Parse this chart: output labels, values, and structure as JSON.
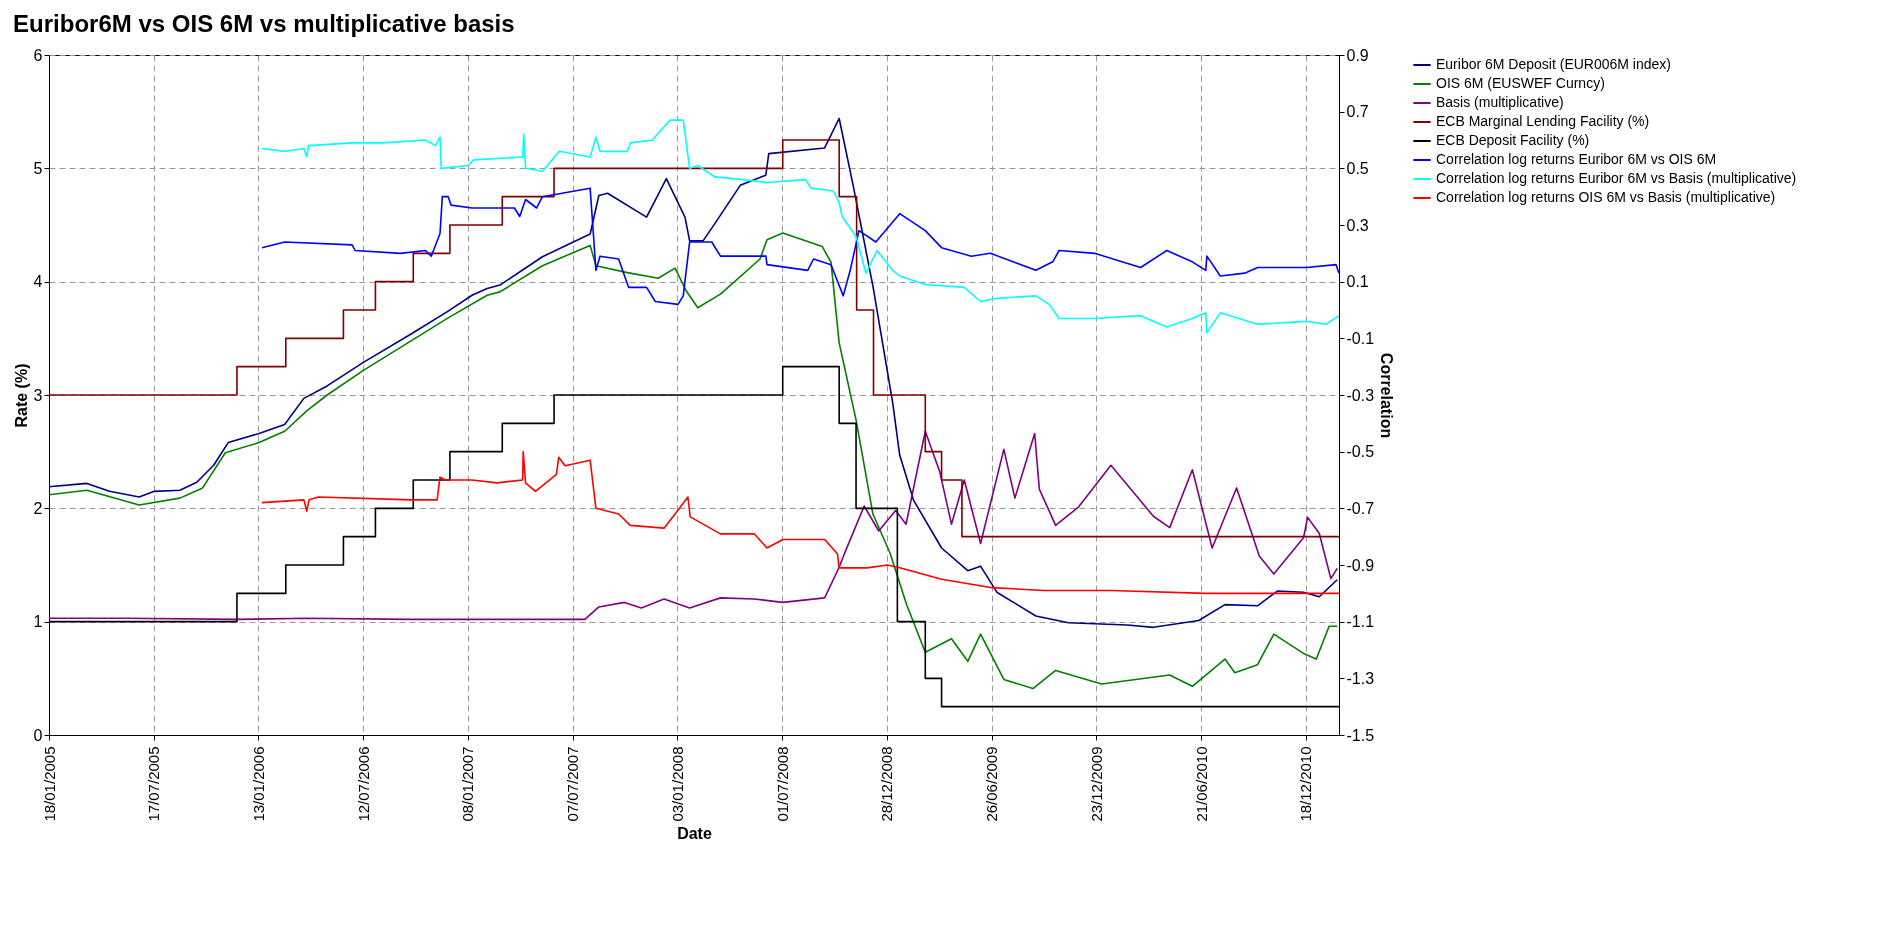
{
  "chart_data": {
    "type": "line",
    "title": "Euribor6M vs OIS 6M vs multiplicative basis",
    "xlabel": "Date",
    "ylabel": "Rate (%)",
    "y2label": "Correlation",
    "xlim": [
      "2005-01-18",
      "2011-02-13"
    ],
    "xticks": [
      {
        "value": "2005-01-18",
        "label": "18/01/2005"
      },
      {
        "value": "2005-07-17",
        "label": "17/07/2005"
      },
      {
        "value": "2006-01-13",
        "label": "13/01/2006"
      },
      {
        "value": "2006-07-12",
        "label": "12/07/2006"
      },
      {
        "value": "2007-01-08",
        "label": "08/01/2007"
      },
      {
        "value": "2007-07-07",
        "label": "07/07/2007"
      },
      {
        "value": "2008-01-03",
        "label": "03/01/2008"
      },
      {
        "value": "2008-07-01",
        "label": "01/07/2008"
      },
      {
        "value": "2008-12-28",
        "label": "28/12/2008"
      },
      {
        "value": "2009-06-26",
        "label": "26/06/2009"
      },
      {
        "value": "2009-12-23",
        "label": "23/12/2009"
      },
      {
        "value": "2010-06-21",
        "label": "21/06/2010"
      },
      {
        "value": "2010-12-18",
        "label": "18/12/2010"
      }
    ],
    "ylim": [
      0,
      6
    ],
    "yticks": [
      0,
      1,
      2,
      3,
      4,
      5,
      6
    ],
    "y2lim": [
      -1.5,
      0.9
    ],
    "y2ticks": [
      -1.5,
      -1.3,
      -1.1,
      -0.9,
      -0.7,
      -0.5,
      -0.3,
      -0.1,
      0.1,
      0.3,
      0.5,
      0.7,
      0.9
    ],
    "grid": true,
    "legend": "right",
    "series": [
      {
        "name": "Euribor 6M Deposit (EUR006M index)",
        "color": "#000080",
        "x": [
          "2005-01-18",
          "2005-03-24",
          "2005-05-02",
          "2005-06-22",
          "2005-07-18",
          "2005-08-31",
          "2005-09-29",
          "2005-10-28",
          "2005-11-22",
          "2006-01-14",
          "2006-02-27",
          "2006-04-01",
          "2006-05-11",
          "2006-07-13",
          "2006-10-03",
          "2006-12-05",
          "2007-01-15",
          "2007-02-10",
          "2007-03-04",
          "2007-05-16",
          "2007-08-06",
          "2007-08-21",
          "2007-09-05",
          "2007-11-11",
          "2007-12-15",
          "2008-01-16",
          "2008-01-24",
          "2008-02-16",
          "2008-03-07",
          "2008-04-20",
          "2008-06-03",
          "2008-06-08",
          "2008-09-12",
          "2008-10-07",
          "2008-10-31",
          "2008-12-04",
          "2009-01-07",
          "2009-01-19",
          "2009-02-12",
          "2009-04-01",
          "2009-05-16",
          "2009-06-07",
          "2009-07-05",
          "2009-09-10",
          "2009-11-05",
          "2010-02-14",
          "2010-03-31",
          "2010-06-17",
          "2010-08-01",
          "2010-09-26",
          "2010-10-30",
          "2010-12-14",
          "2011-01-10",
          "2011-02-10"
        ],
        "values": [
          2.19,
          2.22,
          2.15,
          2.1,
          2.15,
          2.16,
          2.23,
          2.38,
          2.58,
          2.66,
          2.74,
          2.97,
          3.08,
          3.29,
          3.54,
          3.74,
          3.88,
          3.94,
          3.97,
          4.22,
          4.42,
          4.76,
          4.78,
          4.57,
          4.91,
          4.57,
          4.36,
          4.36,
          4.51,
          4.85,
          4.94,
          5.13,
          5.18,
          5.44,
          4.85,
          3.96,
          2.93,
          2.47,
          2.07,
          1.65,
          1.45,
          1.49,
          1.26,
          1.05,
          0.99,
          0.97,
          0.95,
          1.01,
          1.15,
          1.14,
          1.27,
          1.26,
          1.22,
          1.37
        ]
      },
      {
        "name": "OIS 6M (EUSWEF Curncy)",
        "color": "#008000",
        "x": [
          "2005-01-18",
          "2005-03-24",
          "2005-06-22",
          "2005-08-31",
          "2005-10-09",
          "2005-11-17",
          "2006-01-14",
          "2006-02-27",
          "2006-04-06",
          "2006-05-11",
          "2006-07-13",
          "2006-10-03",
          "2006-12-05",
          "2007-02-10",
          "2007-03-04",
          "2007-05-16",
          "2007-08-06",
          "2007-08-16",
          "2007-10-09",
          "2007-12-01",
          "2007-12-30",
          "2008-01-18",
          "2008-02-07",
          "2008-03-17",
          "2008-05-24",
          "2008-06-05",
          "2008-07-02",
          "2008-09-08",
          "2008-09-23",
          "2008-10-07",
          "2008-11-05",
          "2008-12-04",
          "2009-01-02",
          "2009-01-31",
          "2009-03-04",
          "2009-04-18",
          "2009-05-16",
          "2009-06-07",
          "2009-07-17",
          "2009-09-05",
          "2009-10-14",
          "2010-01-01",
          "2010-04-28",
          "2010-06-06",
          "2010-08-01",
          "2010-08-18",
          "2010-09-26",
          "2010-10-24",
          "2010-12-14",
          "2011-01-05",
          "2011-01-27",
          "2011-02-10"
        ],
        "values": [
          2.12,
          2.16,
          2.03,
          2.09,
          2.18,
          2.49,
          2.58,
          2.68,
          2.86,
          3.0,
          3.22,
          3.48,
          3.68,
          3.88,
          3.91,
          4.14,
          4.32,
          4.14,
          4.08,
          4.03,
          4.12,
          3.92,
          3.77,
          3.89,
          4.2,
          4.37,
          4.43,
          4.31,
          4.17,
          3.46,
          2.78,
          1.95,
          1.61,
          1.15,
          0.73,
          0.85,
          0.65,
          0.89,
          0.49,
          0.41,
          0.57,
          0.45,
          0.53,
          0.43,
          0.67,
          0.55,
          0.62,
          0.89,
          0.72,
          0.67,
          0.96,
          0.96
        ]
      },
      {
        "name": "Basis (multiplicative)",
        "color": "#800080",
        "x": [
          "2005-01-18",
          "2005-06-01",
          "2005-12-07",
          "2006-04-06",
          "2006-10-01",
          "2007-03-01",
          "2007-07-28",
          "2007-08-21",
          "2007-10-04",
          "2007-11-02",
          "2007-12-11",
          "2008-01-24",
          "2008-03-17",
          "2008-05-14",
          "2008-07-02",
          "2008-09-12",
          "2008-10-07",
          "2008-10-16",
          "2008-11-19",
          "2008-12-14",
          "2009-01-12",
          "2009-01-30",
          "2009-03-04",
          "2009-03-29",
          "2009-04-18",
          "2009-05-10",
          "2009-06-07",
          "2009-07-17",
          "2009-08-05",
          "2009-09-08",
          "2009-09-16",
          "2009-10-14",
          "2009-11-22",
          "2010-01-17",
          "2010-03-31",
          "2010-04-28",
          "2010-06-06",
          "2010-07-10",
          "2010-08-21",
          "2010-09-29",
          "2010-10-24",
          "2010-12-14",
          "2010-12-21",
          "2011-01-10",
          "2011-01-30",
          "2011-02-10"
        ],
        "values": [
          1.03,
          1.03,
          1.02,
          1.03,
          1.02,
          1.02,
          1.02,
          1.13,
          1.17,
          1.12,
          1.2,
          1.12,
          1.21,
          1.2,
          1.17,
          1.21,
          1.48,
          1.6,
          2.02,
          1.8,
          1.98,
          1.86,
          2.68,
          2.32,
          1.86,
          2.25,
          1.69,
          2.52,
          2.09,
          2.66,
          2.17,
          1.85,
          2.01,
          2.38,
          1.93,
          1.83,
          2.34,
          1.65,
          2.18,
          1.58,
          1.42,
          1.74,
          1.92,
          1.78,
          1.38,
          1.47
        ]
      },
      {
        "name": "ECB Marginal Lending Facility (%)",
        "color": "#800000",
        "type": "step",
        "x": [
          "2005-01-18",
          "2005-12-07",
          "2006-03-01",
          "2006-06-08",
          "2006-08-02",
          "2006-10-06",
          "2006-12-08",
          "2007-03-08",
          "2007-06-05",
          "2008-07-02",
          "2008-10-07",
          "2008-11-06",
          "2008-12-05",
          "2009-03-04",
          "2009-04-01",
          "2009-05-06",
          "2011-02-13"
        ],
        "values": [
          3.0,
          3.25,
          3.5,
          3.75,
          4.0,
          4.25,
          4.5,
          4.75,
          5.0,
          5.25,
          4.75,
          3.75,
          3.0,
          2.5,
          2.25,
          1.75,
          1.75
        ]
      },
      {
        "name": "ECB Deposit Facility (%)",
        "color": "#000000",
        "type": "step",
        "x": [
          "2005-01-18",
          "2005-12-07",
          "2006-03-01",
          "2006-06-08",
          "2006-08-02",
          "2006-10-06",
          "2006-12-08",
          "2007-03-08",
          "2007-06-05",
          "2008-07-02",
          "2008-10-07",
          "2008-11-05",
          "2009-01-15",
          "2009-03-04",
          "2009-04-01",
          "2011-02-13"
        ],
        "values": [
          1.0,
          1.25,
          1.5,
          1.75,
          2.0,
          2.25,
          2.5,
          2.75,
          3.0,
          3.25,
          2.75,
          2.0,
          1.0,
          0.5,
          0.25,
          0.25
        ]
      },
      {
        "name": "Correlation log returns Euribor 6M vs OIS 6M",
        "color": "#0000ff",
        "axis": "y2",
        "x": [
          "2006-01-19",
          "2006-02-27",
          "2006-06-23",
          "2006-06-28",
          "2006-09-14",
          "2006-10-27",
          "2006-11-06",
          "2006-11-21",
          "2006-11-25",
          "2006-12-05",
          "2006-12-10",
          "2007-01-15",
          "2007-03-29",
          "2007-04-07",
          "2007-04-17",
          "2007-05-06",
          "2007-05-16",
          "2007-08-06",
          "2007-08-16",
          "2007-08-23",
          "2007-09-24",
          "2007-10-11",
          "2007-11-11",
          "2007-11-26",
          "2008-01-04",
          "2008-01-13",
          "2008-01-24",
          "2008-03-02",
          "2008-03-17",
          "2008-06-03",
          "2008-06-05",
          "2008-08-14",
          "2008-08-24",
          "2008-09-23",
          "2008-10-14",
          "2008-10-26",
          "2008-11-10",
          "2008-12-09",
          "2009-01-19",
          "2009-03-04",
          "2009-04-01",
          "2009-05-22",
          "2009-06-24",
          "2009-09-10",
          "2009-10-09",
          "2009-10-20",
          "2009-12-20",
          "2010-03-09",
          "2010-04-23",
          "2010-06-06",
          "2010-06-29",
          "2010-07-01",
          "2010-07-24",
          "2010-09-04",
          "2010-09-26",
          "2010-12-19",
          "2011-02-08",
          "2011-02-13"
        ],
        "values": [
          0.22,
          0.24,
          0.23,
          0.21,
          0.2,
          0.21,
          0.19,
          0.27,
          0.4,
          0.4,
          0.37,
          0.36,
          0.36,
          0.33,
          0.39,
          0.36,
          0.4,
          0.43,
          0.14,
          0.19,
          0.18,
          0.08,
          0.08,
          0.03,
          0.02,
          0.05,
          0.24,
          0.24,
          0.19,
          0.19,
          0.16,
          0.14,
          0.18,
          0.16,
          0.05,
          0.14,
          0.28,
          0.24,
          0.34,
          0.28,
          0.22,
          0.19,
          0.2,
          0.14,
          0.17,
          0.21,
          0.2,
          0.15,
          0.21,
          0.17,
          0.14,
          0.19,
          0.12,
          0.13,
          0.15,
          0.15,
          0.16,
          0.13
        ]
      },
      {
        "name": "Correlation log returns Euribor 6M vs Basis (multiplicative)",
        "color": "#00ffff",
        "axis": "y2",
        "x": [
          "2006-01-19",
          "2006-02-27",
          "2006-04-01",
          "2006-04-06",
          "2006-04-09",
          "2006-06-23",
          "2006-08-16",
          "2006-10-27",
          "2006-11-13",
          "2006-11-21",
          "2006-11-23",
          "2007-01-08",
          "2007-01-18",
          "2007-04-12",
          "2007-04-14",
          "2007-04-17",
          "2007-05-16",
          "2007-06-14",
          "2007-08-06",
          "2007-08-16",
          "2007-08-23",
          "2007-10-09",
          "2007-10-14",
          "2007-11-21",
          "2007-12-21",
          "2008-01-13",
          "2008-01-24",
          "2008-02-07",
          "2008-03-07",
          "2008-04-25",
          "2008-06-05",
          "2008-08-10",
          "2008-08-20",
          "2008-09-27",
          "2008-10-07",
          "2008-10-12",
          "2008-11-05",
          "2008-11-22",
          "2008-12-11",
          "2009-01-07",
          "2009-01-19",
          "2009-03-04",
          "2009-05-10",
          "2009-06-07",
          "2009-06-30",
          "2009-09-10",
          "2009-10-03",
          "2009-10-20",
          "2009-12-20",
          "2010-03-09",
          "2010-04-23",
          "2010-06-06",
          "2010-06-29",
          "2010-07-01",
          "2010-07-24",
          "2010-09-26",
          "2010-12-19",
          "2011-01-22",
          "2011-02-13"
        ],
        "values": [
          0.57,
          0.56,
          0.57,
          0.54,
          0.58,
          0.59,
          0.59,
          0.6,
          0.58,
          0.61,
          0.5,
          0.51,
          0.53,
          0.54,
          0.62,
          0.5,
          0.49,
          0.56,
          0.54,
          0.61,
          0.56,
          0.56,
          0.59,
          0.6,
          0.67,
          0.67,
          0.5,
          0.51,
          0.47,
          0.46,
          0.45,
          0.46,
          0.43,
          0.42,
          0.38,
          0.33,
          0.26,
          0.13,
          0.21,
          0.14,
          0.12,
          0.09,
          0.08,
          0.03,
          0.04,
          0.05,
          0.02,
          -0.03,
          -0.03,
          -0.02,
          -0.06,
          -0.03,
          -0.01,
          -0.08,
          -0.01,
          -0.05,
          -0.04,
          -0.05,
          -0.02
        ]
      },
      {
        "name": "Correlation log returns OIS 6M vs Basis (multiplicative)",
        "color": "#ff0000",
        "axis": "y2",
        "x": [
          "2006-01-19",
          "2006-04-01",
          "2006-04-06",
          "2006-04-10",
          "2006-04-26",
          "2006-10-03",
          "2006-11-16",
          "2006-11-21",
          "2006-11-30",
          "2007-01-15",
          "2007-02-27",
          "2007-04-12",
          "2007-04-13",
          "2007-04-17",
          "2007-05-04",
          "2007-06-09",
          "2007-06-13",
          "2007-06-24",
          "2007-08-06",
          "2007-08-16",
          "2007-09-24",
          "2007-10-14",
          "2007-12-11",
          "2007-12-30",
          "2008-01-21",
          "2008-01-25",
          "2008-03-17",
          "2008-05-14",
          "2008-06-05",
          "2008-07-02",
          "2008-09-12",
          "2008-10-04",
          "2008-10-07",
          "2008-11-24",
          "2008-12-29",
          "2009-01-19",
          "2009-04-01",
          "2009-06-27",
          "2009-09-25",
          "2010-01-17",
          "2010-06-29",
          "2011-02-13"
        ],
        "values": [
          -0.68,
          -0.67,
          -0.71,
          -0.67,
          -0.66,
          -0.67,
          -0.67,
          -0.59,
          -0.6,
          -0.6,
          -0.61,
          -0.6,
          -0.5,
          -0.61,
          -0.64,
          -0.58,
          -0.52,
          -0.55,
          -0.53,
          -0.7,
          -0.72,
          -0.76,
          -0.77,
          -0.72,
          -0.66,
          -0.73,
          -0.79,
          -0.79,
          -0.84,
          -0.81,
          -0.81,
          -0.86,
          -0.91,
          -0.91,
          -0.9,
          -0.91,
          -0.95,
          -0.98,
          -0.99,
          -0.99,
          -1.0,
          -1.0
        ]
      }
    ]
  }
}
